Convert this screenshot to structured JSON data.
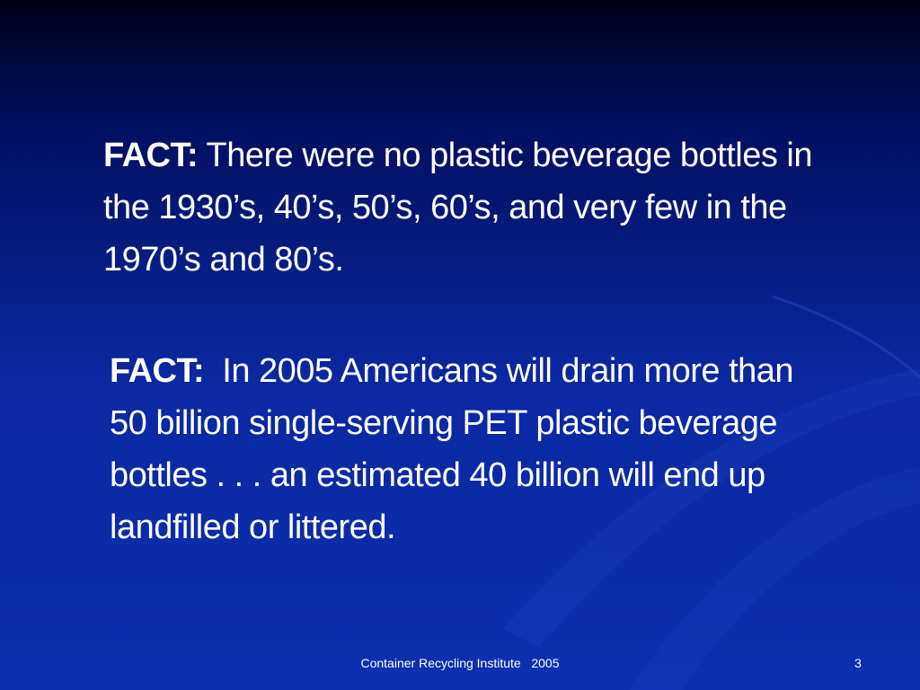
{
  "facts": [
    {
      "label": "FACT:",
      "text": "There were no plastic beverage bottles in the 1930’s, 40’s, 50’s, 60’s, and very few in the 1970’s and 80’s."
    },
    {
      "label": "FACT:",
      "text": "In 2005 Americans will drain more than 50 billion single-serving PET plastic beverage bottles . . . an estimated 40 billion will end up landfilled or littered."
    }
  ],
  "footer": {
    "text": "Container Recycling Institute   2005",
    "page": "3"
  }
}
